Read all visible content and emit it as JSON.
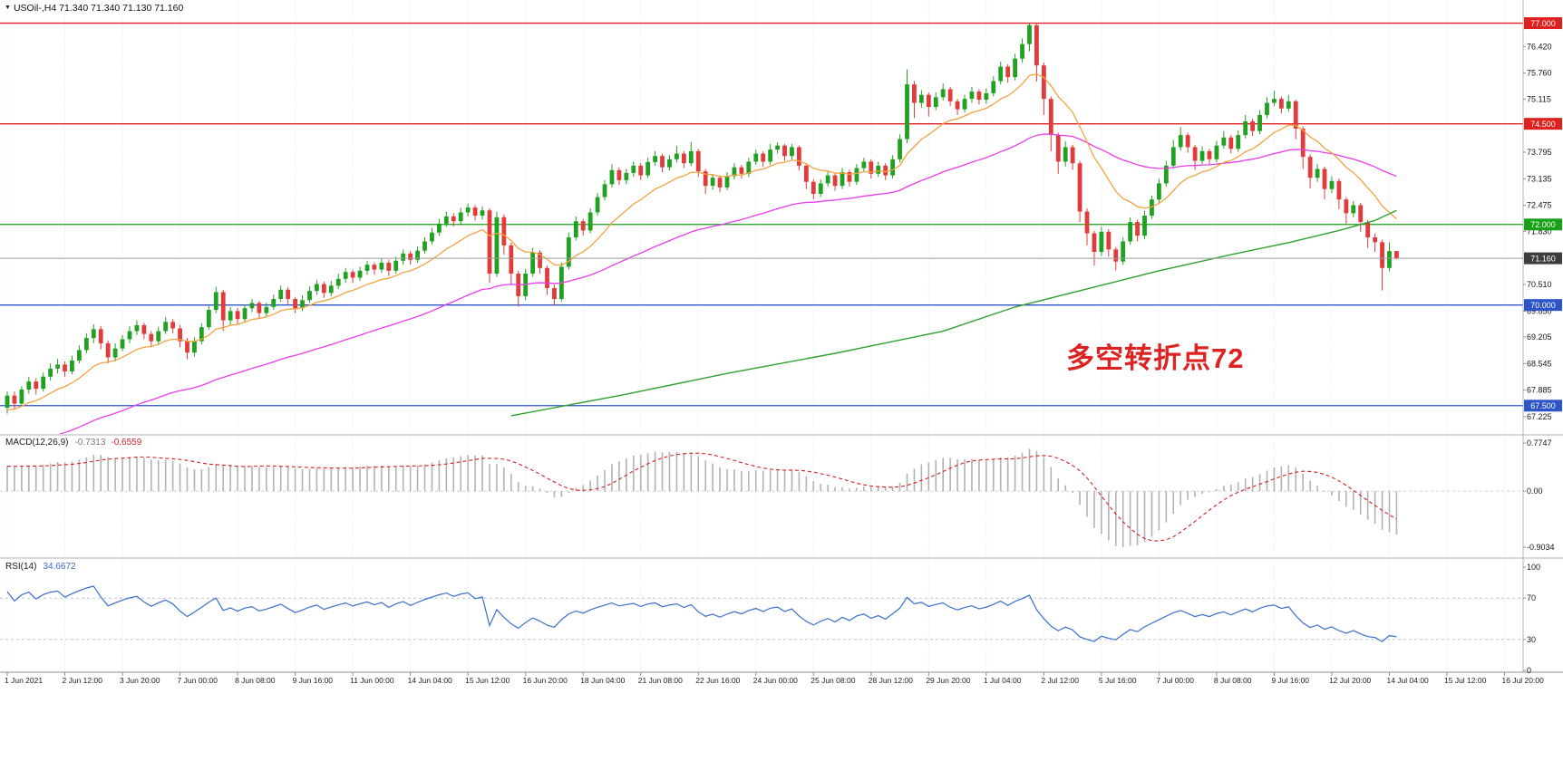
{
  "window": {
    "title": "USOil-,H4 71.340 71.340 71.130 71.160",
    "symbol": "USOil-",
    "timeframe": "H4"
  },
  "main_chart": {
    "annotation": {
      "text": "多空转折点72",
      "color": "#dd2222"
    },
    "hlines": [
      {
        "label": "77.000",
        "value": 77.0,
        "color": "#e01f1f"
      },
      {
        "label": "74.500",
        "value": 74.5,
        "color": "#e01f1f"
      },
      {
        "label": "72.000",
        "value": 72.0,
        "color": "#18a018"
      },
      {
        "label": "70.000",
        "value": 70.0,
        "color": "#2e55c8"
      },
      {
        "label": "67.500",
        "value": 67.5,
        "color": "#2e55c8"
      }
    ],
    "current_price": {
      "label": "71.160",
      "value": 71.16,
      "line_color": "#9a9a9a",
      "badge_color": "#3d3d3d"
    },
    "price_ticks": [
      "76.420",
      "75.760",
      "75.115",
      "73.795",
      "73.135",
      "72.475",
      "71.830",
      "70.510",
      "69.850",
      "69.205",
      "68.545",
      "67.885",
      "67.225"
    ]
  },
  "macd": {
    "label": "MACD(12,26,9)",
    "value_main": "-0.7313",
    "value_signal": "-0.6559",
    "axis": [
      "0.7747",
      "0.00",
      "-0.9034"
    ]
  },
  "rsi": {
    "label": "RSI(14)",
    "value": "34.6672",
    "axis": [
      "100",
      "70",
      "30",
      "0"
    ]
  },
  "time_axis": {
    "labels": [
      "1 Jun 2021",
      "2 Jun 12:00",
      "3 Jun 20:00",
      "7 Jun 00:00",
      "8 Jun 08:00",
      "9 Jun 16:00",
      "11 Jun 00:00",
      "14 Jun 04:00",
      "15 Jun 12:00",
      "16 Jun 20:00",
      "18 Jun 04:00",
      "21 Jun 08:00",
      "22 Jun 16:00",
      "24 Jun 00:00",
      "25 Jun 08:00",
      "28 Jun 12:00",
      "29 Jun 20:00",
      "1 Jul 04:00",
      "2 Jul 12:00",
      "5 Jul 16:00",
      "7 Jul 00:00",
      "8 Jul 08:00",
      "9 Jul 16:00",
      "12 Jul 20:00",
      "14 Jul 04:00",
      "15 Jul 12:00",
      "16 Jul 20:00"
    ]
  },
  "chart_data": {
    "type": "candlestick",
    "symbol": "USOil-",
    "timeframe": "H4",
    "ohlc_current": {
      "open": 71.34,
      "high": 71.34,
      "low": 71.13,
      "close": 71.16
    },
    "price_axis": {
      "min": 67.0,
      "max": 77.35
    },
    "colors": {
      "up": "#21a121",
      "down": "#e23b3b",
      "grid": "#e7e7e7"
    },
    "ma_fast": {
      "type": "EMA",
      "period": 13,
      "color": "#f2a340"
    },
    "ma_mid": {
      "type": "EMA",
      "period": 55,
      "color": "#e83ce8"
    },
    "ma_slow": {
      "type": "long-MA",
      "color": "#2fa12f",
      "points": [
        [
          70,
          67.25
        ],
        [
          85,
          67.75
        ],
        [
          100,
          68.3
        ],
        [
          115,
          68.8
        ],
        [
          130,
          69.35
        ],
        [
          140,
          69.95
        ],
        [
          150,
          70.4
        ],
        [
          160,
          70.85
        ],
        [
          170,
          71.25
        ],
        [
          178,
          71.55
        ],
        [
          185,
          71.85
        ],
        [
          190,
          72.1
        ],
        [
          193,
          72.35
        ]
      ]
    },
    "macd": {
      "fast": 12,
      "slow": 26,
      "signal": 9,
      "range": [
        -0.9034,
        0.7747
      ],
      "hist_color": "#b2b2b2",
      "signal_color": "#d42020"
    },
    "rsi": {
      "period": 14,
      "range": [
        0,
        100
      ],
      "levels": [
        70,
        30
      ],
      "color": "#3b6fc9"
    },
    "candles": [
      [
        67.45,
        67.85,
        67.3,
        67.75
      ],
      [
        67.75,
        67.85,
        67.4,
        67.55
      ],
      [
        67.55,
        67.98,
        67.48,
        67.9
      ],
      [
        67.9,
        68.22,
        67.8,
        68.1
      ],
      [
        68.1,
        68.18,
        67.78,
        67.92
      ],
      [
        67.92,
        68.32,
        67.85,
        68.22
      ],
      [
        68.22,
        68.55,
        68.12,
        68.42
      ],
      [
        68.42,
        68.66,
        68.3,
        68.52
      ],
      [
        68.52,
        68.6,
        68.22,
        68.35
      ],
      [
        68.35,
        68.74,
        68.28,
        68.62
      ],
      [
        68.62,
        69.0,
        68.55,
        68.88
      ],
      [
        68.88,
        69.3,
        68.8,
        69.18
      ],
      [
        69.18,
        69.52,
        69.05,
        69.4
      ],
      [
        69.4,
        69.48,
        68.9,
        69.05
      ],
      [
        69.05,
        69.12,
        68.55,
        68.7
      ],
      [
        68.7,
        69.05,
        68.6,
        68.92
      ],
      [
        68.92,
        69.25,
        68.85,
        69.15
      ],
      [
        69.15,
        69.48,
        69.05,
        69.35
      ],
      [
        69.35,
        69.62,
        69.25,
        69.5
      ],
      [
        69.5,
        69.56,
        69.15,
        69.28
      ],
      [
        69.28,
        69.35,
        68.95,
        69.1
      ],
      [
        69.1,
        69.46,
        69.0,
        69.35
      ],
      [
        69.35,
        69.7,
        69.28,
        69.58
      ],
      [
        69.58,
        69.65,
        69.3,
        69.42
      ],
      [
        69.42,
        69.5,
        68.95,
        69.1
      ],
      [
        69.1,
        69.18,
        68.65,
        68.82
      ],
      [
        68.82,
        69.2,
        68.72,
        69.1
      ],
      [
        69.1,
        69.55,
        69.02,
        69.45
      ],
      [
        69.45,
        69.98,
        69.38,
        69.88
      ],
      [
        69.88,
        70.45,
        69.8,
        70.32
      ],
      [
        70.32,
        70.38,
        69.35,
        69.62
      ],
      [
        69.62,
        69.95,
        69.5,
        69.85
      ],
      [
        69.85,
        69.92,
        69.52,
        69.65
      ],
      [
        69.65,
        70.02,
        69.58,
        69.92
      ],
      [
        69.92,
        70.15,
        69.82,
        70.05
      ],
      [
        70.05,
        70.1,
        69.68,
        69.8
      ],
      [
        69.8,
        70.06,
        69.72,
        69.95
      ],
      [
        69.95,
        70.26,
        69.88,
        70.15
      ],
      [
        70.15,
        70.48,
        70.08,
        70.38
      ],
      [
        70.38,
        70.44,
        70.02,
        70.15
      ],
      [
        70.15,
        70.2,
        69.8,
        69.92
      ],
      [
        69.92,
        70.24,
        69.85,
        70.12
      ],
      [
        70.12,
        70.46,
        70.05,
        70.35
      ],
      [
        70.35,
        70.62,
        70.25,
        70.52
      ],
      [
        70.52,
        70.58,
        70.18,
        70.3
      ],
      [
        70.3,
        70.6,
        70.22,
        70.48
      ],
      [
        70.48,
        70.78,
        70.4,
        70.65
      ],
      [
        70.65,
        70.92,
        70.55,
        70.82
      ],
      [
        70.82,
        70.88,
        70.55,
        70.68
      ],
      [
        70.68,
        70.95,
        70.6,
        70.85
      ],
      [
        70.85,
        71.1,
        70.75,
        71.0
      ],
      [
        71.0,
        71.06,
        70.75,
        70.88
      ],
      [
        70.88,
        71.15,
        70.8,
        71.05
      ],
      [
        71.05,
        71.12,
        70.72,
        70.85
      ],
      [
        70.85,
        71.2,
        70.78,
        71.1
      ],
      [
        71.1,
        71.38,
        71.0,
        71.28
      ],
      [
        71.28,
        71.34,
        71.0,
        71.12
      ],
      [
        71.12,
        71.46,
        71.05,
        71.35
      ],
      [
        71.35,
        71.68,
        71.28,
        71.58
      ],
      [
        71.58,
        71.92,
        71.5,
        71.8
      ],
      [
        71.8,
        72.14,
        71.72,
        72.02
      ],
      [
        72.02,
        72.32,
        71.94,
        72.2
      ],
      [
        72.2,
        72.28,
        71.95,
        72.08
      ],
      [
        72.08,
        72.42,
        72.0,
        72.3
      ],
      [
        72.3,
        72.52,
        72.2,
        72.42
      ],
      [
        72.42,
        72.48,
        72.1,
        72.22
      ],
      [
        72.22,
        72.45,
        72.12,
        72.35
      ],
      [
        72.35,
        72.4,
        70.55,
        70.78
      ],
      [
        70.78,
        72.32,
        70.7,
        72.18
      ],
      [
        72.18,
        72.25,
        71.25,
        71.48
      ],
      [
        71.48,
        71.55,
        70.52,
        70.78
      ],
      [
        70.78,
        70.85,
        69.96,
        70.22
      ],
      [
        70.22,
        70.9,
        70.12,
        70.78
      ],
      [
        70.78,
        71.42,
        70.7,
        71.3
      ],
      [
        71.3,
        71.36,
        70.78,
        70.92
      ],
      [
        70.92,
        70.98,
        70.25,
        70.42
      ],
      [
        70.42,
        70.5,
        69.98,
        70.15
      ],
      [
        70.15,
        71.05,
        70.08,
        70.95
      ],
      [
        70.95,
        71.8,
        70.88,
        71.68
      ],
      [
        71.68,
        72.2,
        71.6,
        72.08
      ],
      [
        72.08,
        72.14,
        71.72,
        71.85
      ],
      [
        71.85,
        72.4,
        71.78,
        72.3
      ],
      [
        72.3,
        72.78,
        72.22,
        72.68
      ],
      [
        72.68,
        73.1,
        72.6,
        73.0
      ],
      [
        73.0,
        73.5,
        72.92,
        73.35
      ],
      [
        73.35,
        73.42,
        72.98,
        73.1
      ],
      [
        73.1,
        73.38,
        73.0,
        73.28
      ],
      [
        73.28,
        73.56,
        73.18,
        73.46
      ],
      [
        73.46,
        73.52,
        73.1,
        73.22
      ],
      [
        73.22,
        73.66,
        73.15,
        73.55
      ],
      [
        73.55,
        73.82,
        73.46,
        73.7
      ],
      [
        73.7,
        73.76,
        73.3,
        73.42
      ],
      [
        73.42,
        73.72,
        73.34,
        73.62
      ],
      [
        73.62,
        73.95,
        73.54,
        73.76
      ],
      [
        73.76,
        73.82,
        73.4,
        73.52
      ],
      [
        73.52,
        74.05,
        73.45,
        73.82
      ],
      [
        73.82,
        73.88,
        73.18,
        73.32
      ],
      [
        73.32,
        73.38,
        72.76,
        72.96
      ],
      [
        72.96,
        73.26,
        72.86,
        73.16
      ],
      [
        73.16,
        73.22,
        72.8,
        72.92
      ],
      [
        72.92,
        73.3,
        72.85,
        73.2
      ],
      [
        73.2,
        73.52,
        73.12,
        73.42
      ],
      [
        73.42,
        73.48,
        73.14,
        73.26
      ],
      [
        73.26,
        73.66,
        73.18,
        73.56
      ],
      [
        73.56,
        73.86,
        73.48,
        73.76
      ],
      [
        73.76,
        73.82,
        73.44,
        73.56
      ],
      [
        73.56,
        74.0,
        73.48,
        73.86
      ],
      [
        73.86,
        74.04,
        73.76,
        73.96
      ],
      [
        73.96,
        74.0,
        73.58,
        73.7
      ],
      [
        73.7,
        74.0,
        73.62,
        73.92
      ],
      [
        73.92,
        73.96,
        73.34,
        73.46
      ],
      [
        73.46,
        73.52,
        72.88,
        73.06
      ],
      [
        73.06,
        73.12,
        72.62,
        72.76
      ],
      [
        72.76,
        73.12,
        72.68,
        73.02
      ],
      [
        73.02,
        73.32,
        72.94,
        73.22
      ],
      [
        73.22,
        73.28,
        72.84,
        72.96
      ],
      [
        72.96,
        73.4,
        72.88,
        73.3
      ],
      [
        73.3,
        73.36,
        72.94,
        73.06
      ],
      [
        73.06,
        73.5,
        72.98,
        73.4
      ],
      [
        73.4,
        73.66,
        73.32,
        73.56
      ],
      [
        73.56,
        73.62,
        73.14,
        73.26
      ],
      [
        73.26,
        73.56,
        73.18,
        73.46
      ],
      [
        73.46,
        73.52,
        73.1,
        73.22
      ],
      [
        73.22,
        73.72,
        73.14,
        73.62
      ],
      [
        73.62,
        74.24,
        73.54,
        74.12
      ],
      [
        74.12,
        75.85,
        74.02,
        75.48
      ],
      [
        75.48,
        75.56,
        74.64,
        75.02
      ],
      [
        75.02,
        75.34,
        74.9,
        75.22
      ],
      [
        75.22,
        75.28,
        74.68,
        74.92
      ],
      [
        74.92,
        75.28,
        74.84,
        75.16
      ],
      [
        75.16,
        75.5,
        75.08,
        75.36
      ],
      [
        75.36,
        75.42,
        74.94,
        75.06
      ],
      [
        75.06,
        75.12,
        74.72,
        74.86
      ],
      [
        74.86,
        75.22,
        74.78,
        75.12
      ],
      [
        75.12,
        75.42,
        75.02,
        75.3
      ],
      [
        75.3,
        75.36,
        74.98,
        75.1
      ],
      [
        75.1,
        75.38,
        75.0,
        75.26
      ],
      [
        75.26,
        75.68,
        75.18,
        75.56
      ],
      [
        75.56,
        76.04,
        75.48,
        75.92
      ],
      [
        75.92,
        75.98,
        75.52,
        75.66
      ],
      [
        75.66,
        76.24,
        75.58,
        76.12
      ],
      [
        76.12,
        76.62,
        76.02,
        76.48
      ],
      [
        76.48,
        77.0,
        76.3,
        76.95
      ],
      [
        76.95,
        76.98,
        75.55,
        75.95
      ],
      [
        75.95,
        76.02,
        74.72,
        75.12
      ],
      [
        75.12,
        75.18,
        73.82,
        74.22
      ],
      [
        74.22,
        74.28,
        73.26,
        73.56
      ],
      [
        73.56,
        74.06,
        73.44,
        73.92
      ],
      [
        73.92,
        73.98,
        73.36,
        73.52
      ],
      [
        73.52,
        73.58,
        72.06,
        72.32
      ],
      [
        72.32,
        72.4,
        71.48,
        71.78
      ],
      [
        71.78,
        71.84,
        70.98,
        71.32
      ],
      [
        71.32,
        71.94,
        71.22,
        71.82
      ],
      [
        71.82,
        71.88,
        71.2,
        71.38
      ],
      [
        71.38,
        71.44,
        70.86,
        71.08
      ],
      [
        71.08,
        71.68,
        71.0,
        71.58
      ],
      [
        71.58,
        72.18,
        71.5,
        72.06
      ],
      [
        72.06,
        72.12,
        71.58,
        71.72
      ],
      [
        71.72,
        72.34,
        71.64,
        72.22
      ],
      [
        72.22,
        72.72,
        72.14,
        72.62
      ],
      [
        72.62,
        73.14,
        72.54,
        73.02
      ],
      [
        73.02,
        73.58,
        72.94,
        73.46
      ],
      [
        73.46,
        74.1,
        73.38,
        73.92
      ],
      [
        73.92,
        74.42,
        73.84,
        74.22
      ],
      [
        74.22,
        74.28,
        73.78,
        73.92
      ],
      [
        73.92,
        73.98,
        73.36,
        73.58
      ],
      [
        73.58,
        73.94,
        73.5,
        73.82
      ],
      [
        73.82,
        73.88,
        73.5,
        73.62
      ],
      [
        73.62,
        74.08,
        73.54,
        73.96
      ],
      [
        73.96,
        74.32,
        73.88,
        74.16
      ],
      [
        74.16,
        74.22,
        73.76,
        73.88
      ],
      [
        73.88,
        74.34,
        73.8,
        74.22
      ],
      [
        74.22,
        74.72,
        74.14,
        74.56
      ],
      [
        74.56,
        74.62,
        74.2,
        74.32
      ],
      [
        74.32,
        74.84,
        74.24,
        74.72
      ],
      [
        74.72,
        75.16,
        74.64,
        75.02
      ],
      [
        75.02,
        75.32,
        74.94,
        75.12
      ],
      [
        75.12,
        75.18,
        74.76,
        74.88
      ],
      [
        74.88,
        75.22,
        74.8,
        75.06
      ],
      [
        75.06,
        75.1,
        74.12,
        74.38
      ],
      [
        74.38,
        74.44,
        73.38,
        73.68
      ],
      [
        73.68,
        73.74,
        72.9,
        73.16
      ],
      [
        73.16,
        73.5,
        73.06,
        73.38
      ],
      [
        73.38,
        73.44,
        72.62,
        72.88
      ],
      [
        72.88,
        73.2,
        72.78,
        73.08
      ],
      [
        73.08,
        73.14,
        72.38,
        72.62
      ],
      [
        72.62,
        72.68,
        72.02,
        72.28
      ],
      [
        72.28,
        72.58,
        72.18,
        72.48
      ],
      [
        72.48,
        72.54,
        71.82,
        72.06
      ],
      [
        72.06,
        72.12,
        71.42,
        71.68
      ],
      [
        71.68,
        71.78,
        71.32,
        71.56
      ],
      [
        71.56,
        71.62,
        70.36,
        70.92
      ],
      [
        70.92,
        71.56,
        70.84,
        71.34
      ],
      [
        71.34,
        71.34,
        71.13,
        71.16
      ]
    ]
  }
}
